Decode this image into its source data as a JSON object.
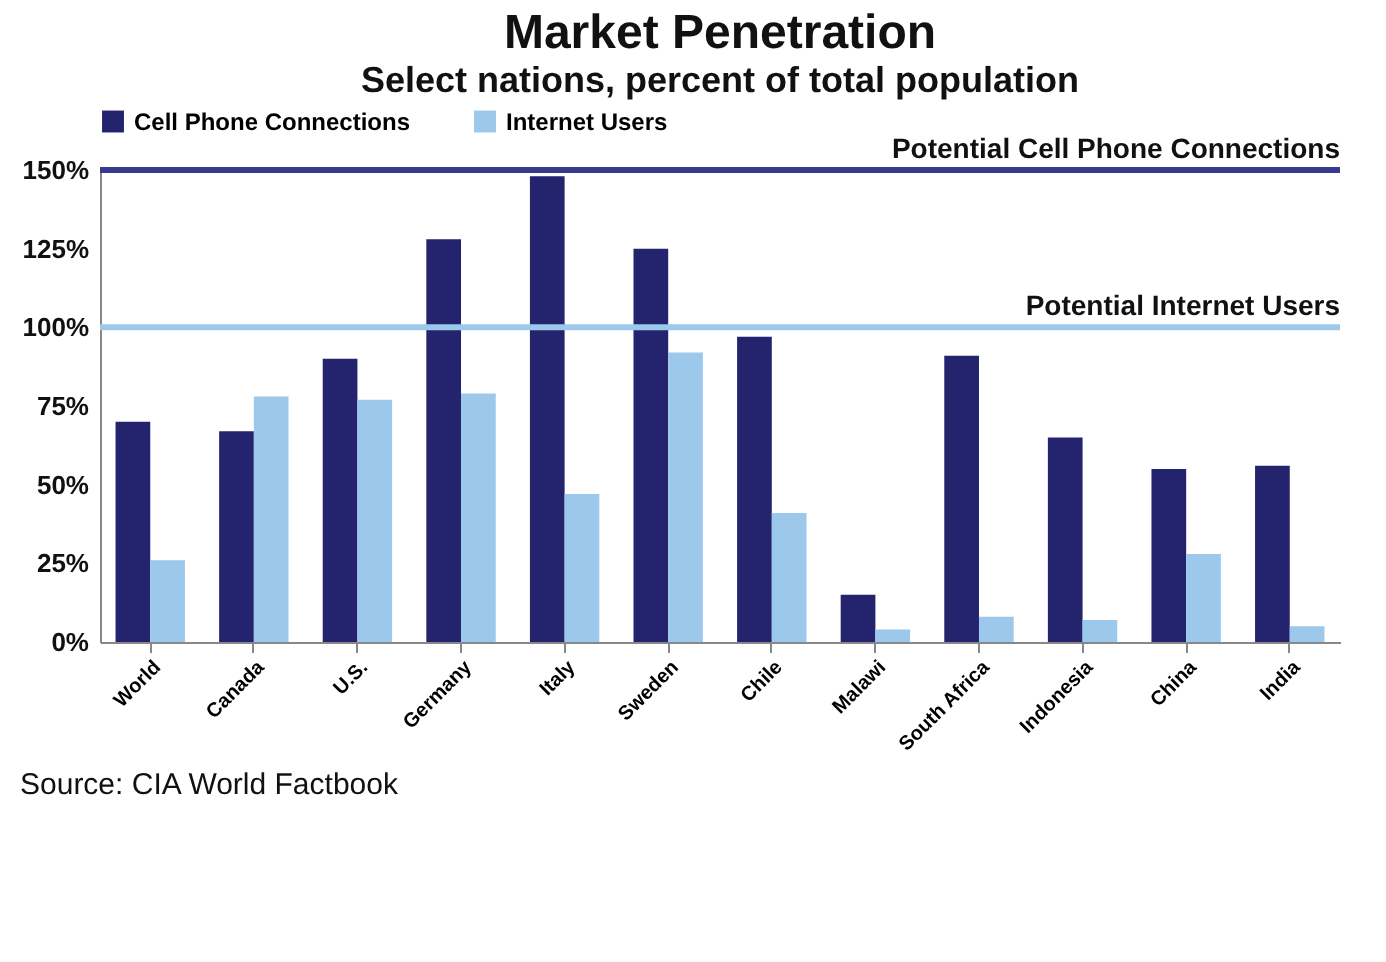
{
  "chart_data": {
    "type": "bar",
    "title": "Market Penetration",
    "subtitle": "Select nations, percent of total population",
    "categories": [
      "World",
      "Canada",
      "U.S.",
      "Germany",
      "Italy",
      "Sweden",
      "Chile",
      "Malawi",
      "South Africa",
      "Indonesia",
      "China",
      "India"
    ],
    "series": [
      {
        "name": "Cell Phone Connections",
        "color": "#23236e",
        "values": [
          70,
          67,
          90,
          128,
          148,
          125,
          97,
          15,
          91,
          65,
          55,
          56
        ]
      },
      {
        "name": "Internet Users",
        "color": "#9cc8ec",
        "values": [
          26,
          78,
          77,
          79,
          47,
          92,
          41,
          4,
          8,
          7,
          28,
          5
        ]
      }
    ],
    "ylim": [
      0,
      150
    ],
    "yticks": [
      {
        "value": 0,
        "label": "0%"
      },
      {
        "value": 25,
        "label": "25%"
      },
      {
        "value": 50,
        "label": "50%"
      },
      {
        "value": 75,
        "label": "75%"
      },
      {
        "value": 100,
        "label": "100%"
      },
      {
        "value": 125,
        "label": "125%"
      },
      {
        "value": 150,
        "label": "150%"
      }
    ],
    "ref_lines": [
      {
        "axis": "y",
        "value": 150,
        "label": "Potential Cell Phone Connections",
        "color": "#3a3a8c"
      },
      {
        "axis": "y",
        "value": 100,
        "label": "Potential Internet Users",
        "color": "#9cc8ec"
      }
    ],
    "legend": "top",
    "grid": false,
    "annotations": [
      "Source: CIA World Factbook"
    ]
  }
}
